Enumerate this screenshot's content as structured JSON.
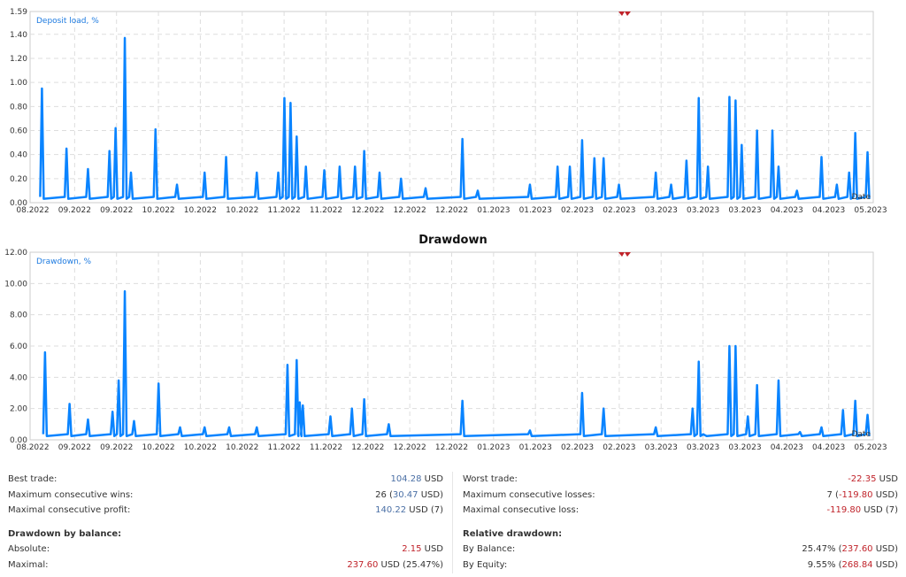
{
  "chart_data": [
    {
      "type": "line",
      "legend": "Deposit load, %",
      "xlabel": "Date",
      "ylim": [
        0,
        1.59
      ],
      "yticks": [
        "0.00",
        "0.20",
        "0.40",
        "0.60",
        "0.80",
        "1.00",
        "1.20",
        "1.40",
        "1.59"
      ],
      "xticks": [
        "08.2022",
        "09.2022",
        "09.2022",
        "10.2022",
        "10.2022",
        "10.2022",
        "11.2022",
        "11.2022",
        "12.2022",
        "12.2022",
        "12.2022",
        "01.2023",
        "01.2023",
        "02.2023",
        "02.2023",
        "03.2023",
        "03.2023",
        "03.2023",
        "04.2023",
        "04.2023",
        "05.2023"
      ],
      "xrange": [
        "2022-08-01",
        "2023-05-01"
      ],
      "grid": true,
      "color": "#0a84ff",
      "marker_color": "#c0232a",
      "points": [
        [
          "2022-08-04",
          0.95
        ],
        [
          "2022-08-12",
          0.45
        ],
        [
          "2022-08-19",
          0.28
        ],
        [
          "2022-08-26",
          0.43
        ],
        [
          "2022-08-28",
          0.62
        ],
        [
          "2022-08-31",
          1.37
        ],
        [
          "2022-09-02",
          0.25
        ],
        [
          "2022-09-10",
          0.61
        ],
        [
          "2022-09-17",
          0.15
        ],
        [
          "2022-09-26",
          0.25
        ],
        [
          "2022-10-03",
          0.38
        ],
        [
          "2022-10-13",
          0.25
        ],
        [
          "2022-10-20",
          0.25
        ],
        [
          "2022-10-22",
          0.87
        ],
        [
          "2022-10-24",
          0.83
        ],
        [
          "2022-10-26",
          0.55
        ],
        [
          "2022-10-29",
          0.3
        ],
        [
          "2022-11-04",
          0.27
        ],
        [
          "2022-11-09",
          0.3
        ],
        [
          "2022-11-14",
          0.3
        ],
        [
          "2022-11-17",
          0.43
        ],
        [
          "2022-11-22",
          0.25
        ],
        [
          "2022-11-29",
          0.2
        ],
        [
          "2022-12-07",
          0.12
        ],
        [
          "2022-12-19",
          0.53
        ],
        [
          "2022-12-24",
          0.1
        ],
        [
          "2023-01-10",
          0.15
        ],
        [
          "2023-01-19",
          0.3
        ],
        [
          "2023-01-23",
          0.3
        ],
        [
          "2023-01-27",
          0.52
        ],
        [
          "2023-01-31",
          0.37
        ],
        [
          "2023-02-03",
          0.37
        ],
        [
          "2023-02-08",
          0.15
        ],
        [
          "2023-02-20",
          0.25
        ],
        [
          "2023-02-25",
          0.15
        ],
        [
          "2023-03-02",
          0.35
        ],
        [
          "2023-03-06",
          0.87
        ],
        [
          "2023-03-09",
          0.3
        ],
        [
          "2023-03-16",
          0.88
        ],
        [
          "2023-03-18",
          0.85
        ],
        [
          "2023-03-20",
          0.48
        ],
        [
          "2023-03-25",
          0.6
        ],
        [
          "2023-03-30",
          0.6
        ],
        [
          "2023-04-01",
          0.3
        ],
        [
          "2023-04-07",
          0.1
        ],
        [
          "2023-04-15",
          0.38
        ],
        [
          "2023-04-20",
          0.15
        ],
        [
          "2023-04-24",
          0.25
        ],
        [
          "2023-04-26",
          0.58
        ],
        [
          "2023-04-30",
          0.42
        ]
      ]
    },
    {
      "type": "line",
      "title": "Drawdown",
      "legend": "Drawdown, %",
      "xlabel": "Date",
      "ylim": [
        0,
        12
      ],
      "yticks": [
        "0.00",
        "2.00",
        "4.00",
        "6.00",
        "8.00",
        "10.00",
        "12.00"
      ],
      "xticks": [
        "08.2022",
        "09.2022",
        "09.2022",
        "10.2022",
        "10.2022",
        "10.2022",
        "11.2022",
        "11.2022",
        "12.2022",
        "12.2022",
        "12.2022",
        "01.2023",
        "01.2023",
        "02.2023",
        "02.2023",
        "03.2023",
        "03.2023",
        "03.2023",
        "04.2023",
        "04.2023",
        "05.2023"
      ],
      "xrange": [
        "2022-08-01",
        "2023-05-01"
      ],
      "grid": true,
      "color": "#0a84ff",
      "marker_color": "#c0232a",
      "points": [
        [
          "2022-08-05",
          5.6
        ],
        [
          "2022-08-13",
          2.3
        ],
        [
          "2022-08-19",
          1.3
        ],
        [
          "2022-08-27",
          1.8
        ],
        [
          "2022-08-29",
          3.8
        ],
        [
          "2022-08-31",
          9.5
        ],
        [
          "2022-09-03",
          1.2
        ],
        [
          "2022-09-11",
          3.6
        ],
        [
          "2022-09-18",
          0.8
        ],
        [
          "2022-09-26",
          0.8
        ],
        [
          "2022-10-04",
          0.8
        ],
        [
          "2022-10-13",
          0.8
        ],
        [
          "2022-10-23",
          4.8
        ],
        [
          "2022-10-26",
          5.1
        ],
        [
          "2022-10-27",
          2.4
        ],
        [
          "2022-10-28",
          2.2
        ],
        [
          "2022-11-06",
          1.5
        ],
        [
          "2022-11-13",
          2.0
        ],
        [
          "2022-11-17",
          2.6
        ],
        [
          "2022-11-25",
          1.0
        ],
        [
          "2022-12-19",
          2.5
        ],
        [
          "2023-01-10",
          0.6
        ],
        [
          "2023-01-27",
          3.0
        ],
        [
          "2023-02-03",
          2.0
        ],
        [
          "2023-02-20",
          0.8
        ],
        [
          "2023-03-04",
          2.0
        ],
        [
          "2023-03-06",
          5.0
        ],
        [
          "2023-03-08",
          0.3
        ],
        [
          "2023-03-16",
          6.0
        ],
        [
          "2023-03-18",
          6.0
        ],
        [
          "2023-03-22",
          1.5
        ],
        [
          "2023-03-25",
          3.5
        ],
        [
          "2023-04-01",
          3.8
        ],
        [
          "2023-04-08",
          0.5
        ],
        [
          "2023-04-15",
          0.8
        ],
        [
          "2023-04-22",
          1.9
        ],
        [
          "2023-04-26",
          2.5
        ],
        [
          "2023-04-30",
          1.6
        ]
      ]
    }
  ],
  "stats": {
    "left": [
      {
        "label": "Best trade:",
        "parts": [
          [
            "104.28",
            "blue"
          ],
          [
            " USD",
            ""
          ]
        ]
      },
      {
        "label": "Maximum consecutive wins:",
        "parts": [
          [
            "26 (",
            ""
          ],
          [
            "30.47",
            "blue"
          ],
          [
            " USD)",
            ""
          ]
        ]
      },
      {
        "label": "Maximal consecutive profit:",
        "parts": [
          [
            "140.22",
            "blue"
          ],
          [
            " USD (7)",
            ""
          ]
        ]
      },
      {
        "gap": true
      },
      {
        "label": "Drawdown by balance:",
        "head": true,
        "parts": []
      },
      {
        "label": "Absolute:",
        "parts": [
          [
            "2.15",
            "red"
          ],
          [
            " USD",
            ""
          ]
        ]
      },
      {
        "label": "Maximal:",
        "parts": [
          [
            "237.60",
            "red"
          ],
          [
            " USD (25.47%)",
            ""
          ]
        ]
      }
    ],
    "right": [
      {
        "label": "Worst trade:",
        "parts": [
          [
            "-22.35",
            "red"
          ],
          [
            " USD",
            ""
          ]
        ]
      },
      {
        "label": "Maximum consecutive losses:",
        "parts": [
          [
            "7 (",
            ""
          ],
          [
            "-119.80",
            "red"
          ],
          [
            " USD)",
            ""
          ]
        ]
      },
      {
        "label": "Maximal consecutive loss:",
        "parts": [
          [
            "-119.80",
            "red"
          ],
          [
            " USD (7)",
            ""
          ]
        ]
      },
      {
        "gap": true
      },
      {
        "label": "Relative drawdown:",
        "head": true,
        "parts": []
      },
      {
        "label": "By Balance:",
        "parts": [
          [
            "25.47% (",
            ""
          ],
          [
            "237.60",
            "red"
          ],
          [
            " USD)",
            ""
          ]
        ]
      },
      {
        "label": "By Equity:",
        "parts": [
          [
            "9.55% (",
            ""
          ],
          [
            "268.84",
            "red"
          ],
          [
            " USD)",
            ""
          ]
        ]
      }
    ]
  }
}
